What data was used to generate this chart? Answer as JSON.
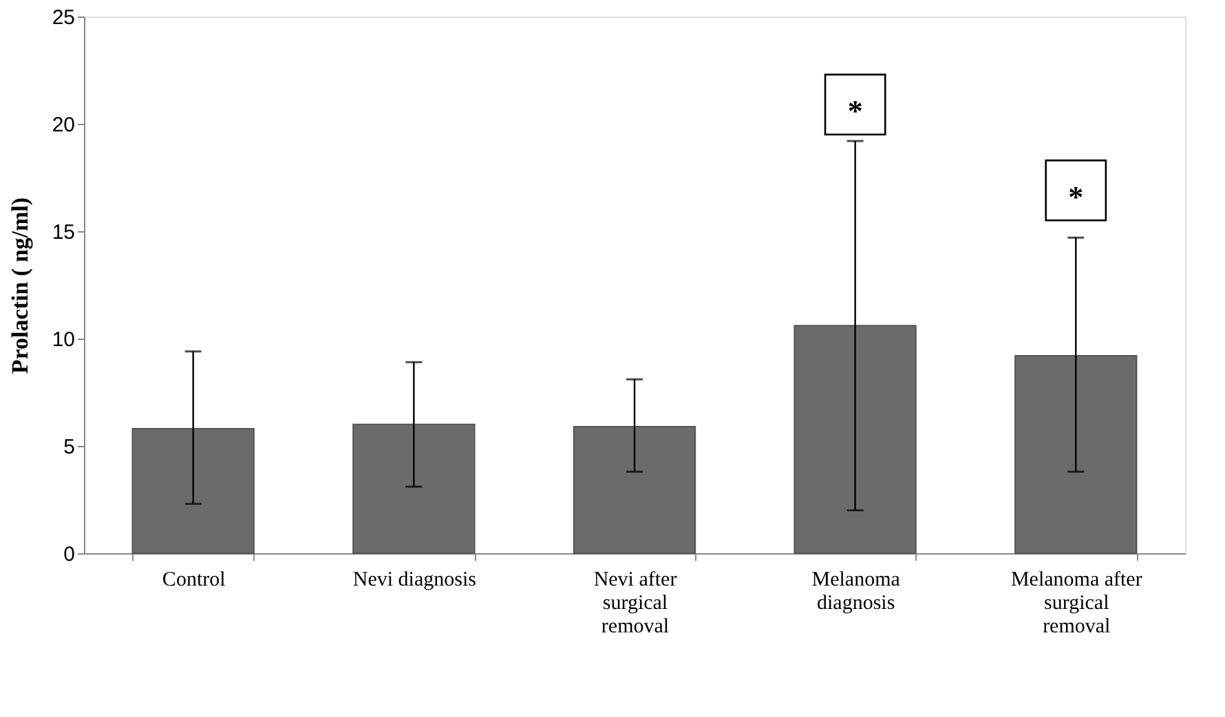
{
  "chart_data": {
    "type": "bar",
    "ylabel": "Prolactin ( ng/ml)",
    "categories": [
      "Control",
      "Nevi diagnosis",
      "Nevi after surgical removal",
      "Melanoma diagnosis",
      "Melanoma after surgical removal"
    ],
    "values": [
      5.8,
      6.0,
      5.9,
      10.6,
      9.2
    ],
    "errors": [
      [
        2.3,
        9.4
      ],
      [
        3.1,
        8.9
      ],
      [
        3.8,
        8.1
      ],
      [
        2.0,
        19.2
      ],
      [
        3.8,
        14.7
      ]
    ],
    "color": "#6b6b6b",
    "ylim": [
      0,
      25
    ],
    "yticks": [
      0,
      5,
      10,
      15,
      20,
      25
    ],
    "grid": false,
    "annotations": [
      {
        "text": "*",
        "x": "Melanoma diagnosis",
        "y": 20.9
      },
      {
        "text": "*",
        "x": "Melanoma after surgical removal",
        "y": 16.9
      }
    ]
  }
}
